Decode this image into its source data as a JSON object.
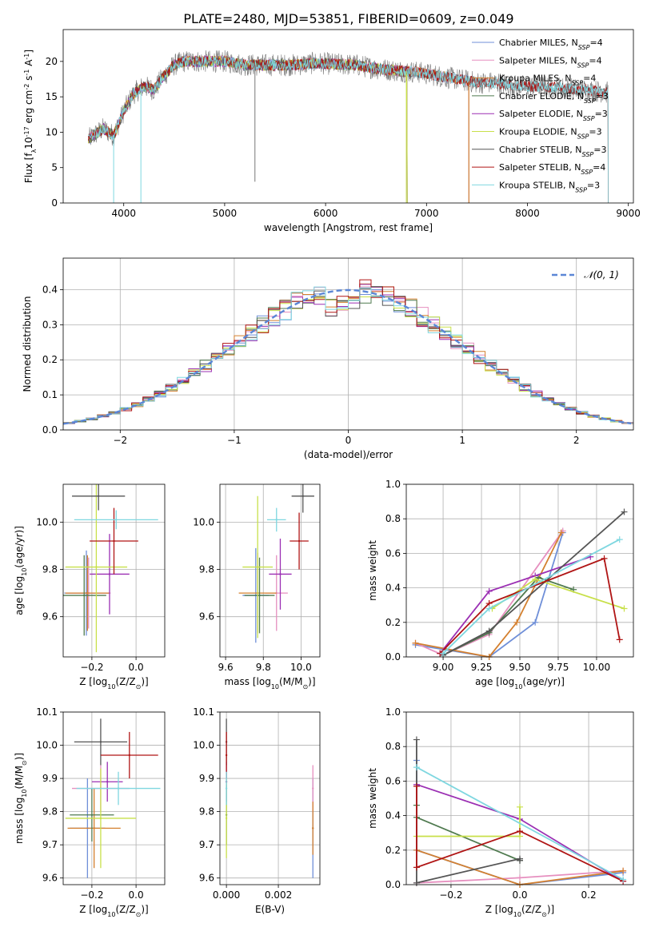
{
  "figure": {
    "title": "PLATE=2480, MJD=53851, FIBERID=0609, z=0.049",
    "colors": {
      "Chabrier MILES": "#6f8fd8",
      "Salpeter MILES": "#e68fbf",
      "Kroupa MILES": "#d4802f",
      "Chabrier ELODIE": "#4f7a4f",
      "Salpeter ELODIE": "#9b2fb3",
      "Kroupa ELODIE": "#c8e04a",
      "Chabrier STELIB": "#555555",
      "Salpeter STELIB": "#b01515",
      "Kroupa STELIB": "#7fd7e0",
      "gaussian": "#5b86d6"
    }
  },
  "chart_data": [
    {
      "id": "spectrum",
      "type": "line",
      "xlabel": "wavelength [Angstrom, rest frame]",
      "ylabel": "Flux [f$_{\\lambda}$10$^{-17}$ erg cm$^{-2}$ s$^{-1}$ A$^{-1}$]",
      "xlim": [
        3400,
        9050
      ],
      "ylim": [
        0,
        24.5
      ],
      "xticks": [
        4000,
        5000,
        6000,
        7000,
        8000,
        9000
      ],
      "yticks": [
        0,
        5,
        10,
        15,
        20
      ],
      "grid": false,
      "legend_position": "top-right",
      "legend": [
        {
          "label": "Chabrier MILES, N",
          "sub": "SSP",
          "tail": "=4"
        },
        {
          "label": "Salpeter MILES, N",
          "sub": "SSP",
          "tail": "=4"
        },
        {
          "label": "Kroupa MILES, N",
          "sub": "SSP",
          "tail": "=4"
        },
        {
          "label": "Chabrier ELODIE, N",
          "sub": "SSP",
          "tail": "=3"
        },
        {
          "label": "Salpeter ELODIE, N",
          "sub": "SSP",
          "tail": "=3"
        },
        {
          "label": "Kroupa ELODIE, N",
          "sub": "SSP",
          "tail": "=3"
        },
        {
          "label": "Chabrier STELIB, N",
          "sub": "SSP",
          "tail": "=3"
        },
        {
          "label": "Salpeter STELIB, N",
          "sub": "SSP",
          "tail": "=4"
        },
        {
          "label": "Kroupa STELIB, N",
          "sub": "SSP",
          "tail": "=3"
        }
      ],
      "continuum": [
        [
          3650,
          9
        ],
        [
          3800,
          10.5
        ],
        [
          3900,
          9.5
        ],
        [
          4000,
          13
        ],
        [
          4100,
          15.5
        ],
        [
          4200,
          16.5
        ],
        [
          4300,
          16
        ],
        [
          4400,
          18
        ],
        [
          4500,
          19.5
        ],
        [
          4600,
          20
        ],
        [
          4800,
          20
        ],
        [
          5000,
          20
        ],
        [
          5200,
          19.5
        ],
        [
          5500,
          19.5
        ],
        [
          5700,
          19.5
        ],
        [
          5900,
          19.8
        ],
        [
          6100,
          19.6
        ],
        [
          6300,
          19.5
        ],
        [
          6500,
          19
        ],
        [
          6700,
          18.7
        ],
        [
          6900,
          18.5
        ],
        [
          7100,
          18
        ],
        [
          7300,
          17.5
        ],
        [
          7500,
          17
        ],
        [
          7700,
          17
        ],
        [
          7900,
          16.5
        ],
        [
          8100,
          16.5
        ],
        [
          8300,
          16.3
        ],
        [
          8500,
          16
        ],
        [
          8700,
          15.8
        ],
        [
          8800,
          15.6
        ]
      ],
      "model_ranges": [
        {
          "series": "Chabrier MILES",
          "x": [
            3650,
            7420
          ]
        },
        {
          "series": "Salpeter MILES",
          "x": [
            3650,
            7420
          ]
        },
        {
          "series": "Kroupa MILES",
          "x": [
            3650,
            7420
          ]
        },
        {
          "series": "Chabrier ELODIE",
          "x": [
            3650,
            6810
          ]
        },
        {
          "series": "Salpeter ELODIE",
          "x": [
            3650,
            6810
          ]
        },
        {
          "series": "Kroupa ELODIE",
          "x": [
            3650,
            6810
          ]
        },
        {
          "series": "Chabrier STELIB",
          "x": [
            3650,
            8800
          ]
        },
        {
          "series": "Salpeter STELIB",
          "x": [
            3650,
            8800
          ]
        },
        {
          "series": "Kroupa STELIB",
          "x": [
            3650,
            8800
          ]
        }
      ]
    },
    {
      "id": "residuals",
      "type": "line",
      "xlabel": "(data-model)/error",
      "ylabel": "Normed distribution",
      "xlim": [
        -2.5,
        2.5
      ],
      "ylim": [
        0,
        0.49
      ],
      "xticks": [
        -2,
        -1,
        0,
        1,
        2
      ],
      "yticks": [
        0.0,
        0.1,
        0.2,
        0.3,
        0.4
      ],
      "grid": true,
      "legend_position": "top-right",
      "legend": [
        {
          "label": "𝒩(0, 1)"
        }
      ],
      "bin_width": 0.1
    },
    {
      "id": "age_vs_Z",
      "type": "scatter",
      "xlabel": "Z [log₁₀(Z/Z☉)]",
      "ylabel": "age  [log₁₀(age/yr)]",
      "xlim": [
        -0.33,
        0.13
      ],
      "ylim": [
        9.43,
        10.16
      ],
      "xticks": [
        -0.2,
        0.0
      ],
      "yticks": [
        9.6,
        9.8,
        10.0
      ],
      "grid": true,
      "points": [
        {
          "series": "Chabrier MILES",
          "x": -0.225,
          "y": 9.7,
          "xerr": 0.1,
          "yerr": 0.18
        },
        {
          "series": "Salpeter MILES",
          "x": -0.215,
          "y": 9.7,
          "xerr": 0.1,
          "yerr": 0.15
        },
        {
          "series": "Kroupa MILES",
          "x": -0.22,
          "y": 9.7,
          "xerr": 0.1,
          "yerr": 0.16
        },
        {
          "series": "Chabrier ELODIE",
          "x": -0.235,
          "y": 9.69,
          "xerr": 0.1,
          "yerr": 0.17
        },
        {
          "series": "Salpeter ELODIE",
          "x": -0.12,
          "y": 9.78,
          "xerr": 0.09,
          "yerr": 0.17
        },
        {
          "series": "Kroupa ELODIE",
          "x": -0.18,
          "y": 9.81,
          "xerr": 0.14,
          "yerr": 0.36
        },
        {
          "series": "Chabrier STELIB",
          "x": -0.17,
          "y": 10.11,
          "xerr": 0.12,
          "yerr": 0.06
        },
        {
          "series": "Salpeter STELIB",
          "x": -0.1,
          "y": 9.92,
          "xerr": 0.11,
          "yerr": 0.14
        },
        {
          "series": "Kroupa STELIB",
          "x": -0.09,
          "y": 10.01,
          "xerr": 0.19,
          "yerr": 0.04
        }
      ]
    },
    {
      "id": "age_vs_mass",
      "type": "scatter",
      "xlabel": "mass [log₁₀(M/M☉)]",
      "ylabel": "",
      "xlim": [
        9.57,
        10.1
      ],
      "ylim": [
        9.43,
        10.16
      ],
      "xticks": [
        9.6,
        9.8,
        10.0
      ],
      "yticks": [
        9.6,
        9.8,
        10.0
      ],
      "grid": true,
      "points": [
        {
          "series": "Chabrier MILES",
          "x": 9.76,
          "y": 9.69,
          "xerr": 0.07,
          "yerr": 0.2
        },
        {
          "series": "Salpeter MILES",
          "x": 9.87,
          "y": 9.7,
          "xerr": 0.06,
          "yerr": 0.16
        },
        {
          "series": "Kroupa MILES",
          "x": 9.77,
          "y": 9.7,
          "xerr": 0.1,
          "yerr": 0.17
        },
        {
          "series": "Chabrier ELODIE",
          "x": 9.78,
          "y": 9.69,
          "xerr": 0.08,
          "yerr": 0.16
        },
        {
          "series": "Salpeter ELODIE",
          "x": 9.89,
          "y": 9.78,
          "xerr": 0.06,
          "yerr": 0.15
        },
        {
          "series": "Kroupa ELODIE",
          "x": 9.77,
          "y": 9.81,
          "xerr": 0.08,
          "yerr": 0.3
        },
        {
          "series": "Chabrier STELIB",
          "x": 10.01,
          "y": 10.11,
          "xerr": 0.06,
          "yerr": 0.07
        },
        {
          "series": "Salpeter STELIB",
          "x": 9.99,
          "y": 9.92,
          "xerr": 0.05,
          "yerr": 0.12
        },
        {
          "series": "Kroupa STELIB",
          "x": 9.87,
          "y": 10.01,
          "xerr": 0.05,
          "yerr": 0.05
        }
      ]
    },
    {
      "id": "weight_vs_age",
      "type": "line",
      "xlabel": "age  [log₁₀(age/yr)]",
      "ylabel": "mass weight",
      "xlim": [
        8.76,
        10.24
      ],
      "ylim": [
        0,
        1.0
      ],
      "xticks": [
        9.0,
        9.25,
        9.5,
        9.75,
        10.0
      ],
      "xtick_labels": [
        "9.00",
        "9.25",
        "9.50",
        "9.75",
        "10.00"
      ],
      "yticks": [
        0.0,
        0.2,
        0.4,
        0.6,
        0.8,
        1.0
      ],
      "grid": true,
      "series": [
        {
          "name": "Chabrier MILES",
          "x": [
            8.82,
            9.3,
            9.6,
            9.78
          ],
          "y": [
            0.07,
            0.0,
            0.2,
            0.72
          ]
        },
        {
          "name": "Salpeter MILES",
          "x": [
            8.82,
            9.0,
            9.3,
            9.78
          ],
          "y": [
            0.08,
            0.01,
            0.13,
            0.73
          ]
        },
        {
          "name": "Kroupa MILES",
          "x": [
            8.82,
            9.3,
            9.48,
            9.77
          ],
          "y": [
            0.08,
            0.0,
            0.2,
            0.72
          ]
        },
        {
          "name": "Chabrier ELODIE",
          "x": [
            9.0,
            9.3,
            9.62,
            9.85
          ],
          "y": [
            0.01,
            0.14,
            0.46,
            0.39
          ]
        },
        {
          "name": "Salpeter ELODIE",
          "x": [
            8.98,
            9.3,
            9.6,
            9.96
          ],
          "y": [
            0.02,
            0.38,
            0.47,
            0.58
          ]
        },
        {
          "name": "Kroupa ELODIE",
          "x": [
            9.32,
            9.6,
            10.18
          ],
          "y": [
            0.28,
            0.45,
            0.28
          ]
        },
        {
          "name": "Chabrier STELIB",
          "x": [
            9.0,
            9.3,
            10.18
          ],
          "y": [
            0.01,
            0.15,
            0.84
          ]
        },
        {
          "name": "Salpeter STELIB",
          "x": [
            8.98,
            9.3,
            10.05,
            10.15
          ],
          "y": [
            0.02,
            0.31,
            0.57,
            0.1
          ]
        },
        {
          "name": "Kroupa STELIB",
          "x": [
            9.0,
            9.3,
            10.15
          ],
          "y": [
            0.02,
            0.28,
            0.68
          ]
        }
      ]
    },
    {
      "id": "mass_vs_Z",
      "type": "scatter",
      "xlabel": "Z [log₁₀(Z/Z☉)]",
      "ylabel": "mass [log₁₀(M/M☉)]",
      "xlim": [
        -0.33,
        0.13
      ],
      "ylim": [
        9.58,
        10.1
      ],
      "xticks": [
        -0.2,
        0.0
      ],
      "yticks": [
        9.6,
        9.7,
        9.8,
        9.9,
        10.0,
        10.1
      ],
      "grid": true,
      "points": [
        {
          "series": "Chabrier MILES",
          "x": -0.22,
          "y": 9.75,
          "xerr": 0.08,
          "yerr": 0.15
        },
        {
          "series": "Salpeter MILES",
          "x": -0.16,
          "y": 9.87,
          "xerr": 0.13,
          "yerr": 0.07
        },
        {
          "series": "Kroupa MILES",
          "x": -0.19,
          "y": 9.75,
          "xerr": 0.12,
          "yerr": 0.12
        },
        {
          "series": "Chabrier ELODIE",
          "x": -0.2,
          "y": 9.79,
          "xerr": 0.1,
          "yerr": 0.08
        },
        {
          "series": "Salpeter ELODIE",
          "x": -0.13,
          "y": 9.89,
          "xerr": 0.07,
          "yerr": 0.06
        },
        {
          "series": "Kroupa ELODIE",
          "x": -0.16,
          "y": 9.78,
          "xerr": 0.16,
          "yerr": 0.15
        },
        {
          "series": "Chabrier STELIB",
          "x": -0.16,
          "y": 10.01,
          "xerr": 0.12,
          "yerr": 0.07
        },
        {
          "series": "Salpeter STELIB",
          "x": -0.03,
          "y": 9.97,
          "xerr": 0.13,
          "yerr": 0.07
        },
        {
          "series": "Kroupa STELIB",
          "x": -0.08,
          "y": 9.87,
          "xerr": 0.19,
          "yerr": 0.05
        }
      ]
    },
    {
      "id": "mass_vs_EBV",
      "type": "scatter",
      "xlabel": "E(B-V)",
      "ylabel": "",
      "xlim": [
        -0.00025,
        0.0036
      ],
      "ylim": [
        9.58,
        10.1
      ],
      "xticks": [
        0.0,
        0.002
      ],
      "xtick_labels": [
        "0.000",
        "0.002"
      ],
      "yticks": [
        9.6,
        9.7,
        9.8,
        9.9,
        10.0,
        10.1
      ],
      "grid": true,
      "points": [
        {
          "series": "Chabrier MILES",
          "x": 0.00333,
          "y": 9.75,
          "xerr": 0,
          "yerr": 0.15
        },
        {
          "series": "Salpeter MILES",
          "x": 0.00333,
          "y": 9.87,
          "xerr": 0,
          "yerr": 0.07
        },
        {
          "series": "Kroupa MILES",
          "x": 0.00333,
          "y": 9.75,
          "xerr": 0,
          "yerr": 0.08
        },
        {
          "series": "Chabrier ELODIE",
          "x": 0.0,
          "y": 9.79,
          "xerr": 0,
          "yerr": 0.09
        },
        {
          "series": "Salpeter ELODIE",
          "x": 0.0,
          "y": 9.89,
          "xerr": 0,
          "yerr": 0.06
        },
        {
          "series": "Kroupa ELODIE",
          "x": 0.0,
          "y": 9.78,
          "xerr": 0,
          "yerr": 0.12
        },
        {
          "series": "Chabrier STELIB",
          "x": 0.0,
          "y": 10.01,
          "xerr": 0,
          "yerr": 0.07
        },
        {
          "series": "Salpeter STELIB",
          "x": 0.0,
          "y": 9.97,
          "xerr": 0,
          "yerr": 0.07
        },
        {
          "series": "Kroupa STELIB",
          "x": 0.0,
          "y": 9.87,
          "xerr": 0,
          "yerr": 0.05
        }
      ]
    },
    {
      "id": "weight_vs_Z",
      "type": "line",
      "xlabel": "Z [log₁₀(Z/Z☉)]",
      "ylabel": "mass weight",
      "xlim": [
        -0.33,
        0.33
      ],
      "ylim": [
        0,
        1.0
      ],
      "xticks": [
        -0.2,
        0.0,
        0.2
      ],
      "yticks": [
        0.0,
        0.2,
        0.4,
        0.6,
        0.8,
        1.0
      ],
      "grid": true,
      "series": [
        {
          "name": "Chabrier MILES",
          "x": [
            -0.3,
            -0.3,
            0.0,
            0.3
          ],
          "y": [
            0.72,
            0.2,
            0.0,
            0.07
          ]
        },
        {
          "name": "Salpeter MILES",
          "x": [
            -0.3,
            0.0,
            0.3
          ],
          "y": [
            0.01,
            0.04,
            0.08
          ]
        },
        {
          "name": "Kroupa MILES",
          "x": [
            -0.3,
            0.0,
            0.3
          ],
          "y": [
            0.2,
            0.0,
            0.08
          ]
        },
        {
          "name": "Chabrier ELODIE",
          "x": [
            -0.3,
            -0.3,
            0.0
          ],
          "y": [
            0.46,
            0.39,
            0.14
          ]
        },
        {
          "name": "Salpeter ELODIE",
          "x": [
            -0.3,
            0.0,
            0.3
          ],
          "y": [
            0.58,
            0.38,
            0.02
          ]
        },
        {
          "name": "Kroupa ELODIE",
          "x": [
            -0.3,
            0.0,
            0.0
          ],
          "y": [
            0.28,
            0.28,
            0.45
          ]
        },
        {
          "name": "Chabrier STELIB",
          "x": [
            -0.3,
            -0.3,
            0.0,
            0.0
          ],
          "y": [
            0.84,
            0.01,
            0.15,
            0.14
          ]
        },
        {
          "name": "Salpeter STELIB",
          "x": [
            -0.3,
            -0.3,
            0.0,
            0.3
          ],
          "y": [
            0.57,
            0.1,
            0.31,
            0.02
          ]
        },
        {
          "name": "Kroupa STELIB",
          "x": [
            -0.3,
            0.3
          ],
          "y": [
            0.68,
            0.03
          ]
        }
      ]
    }
  ]
}
